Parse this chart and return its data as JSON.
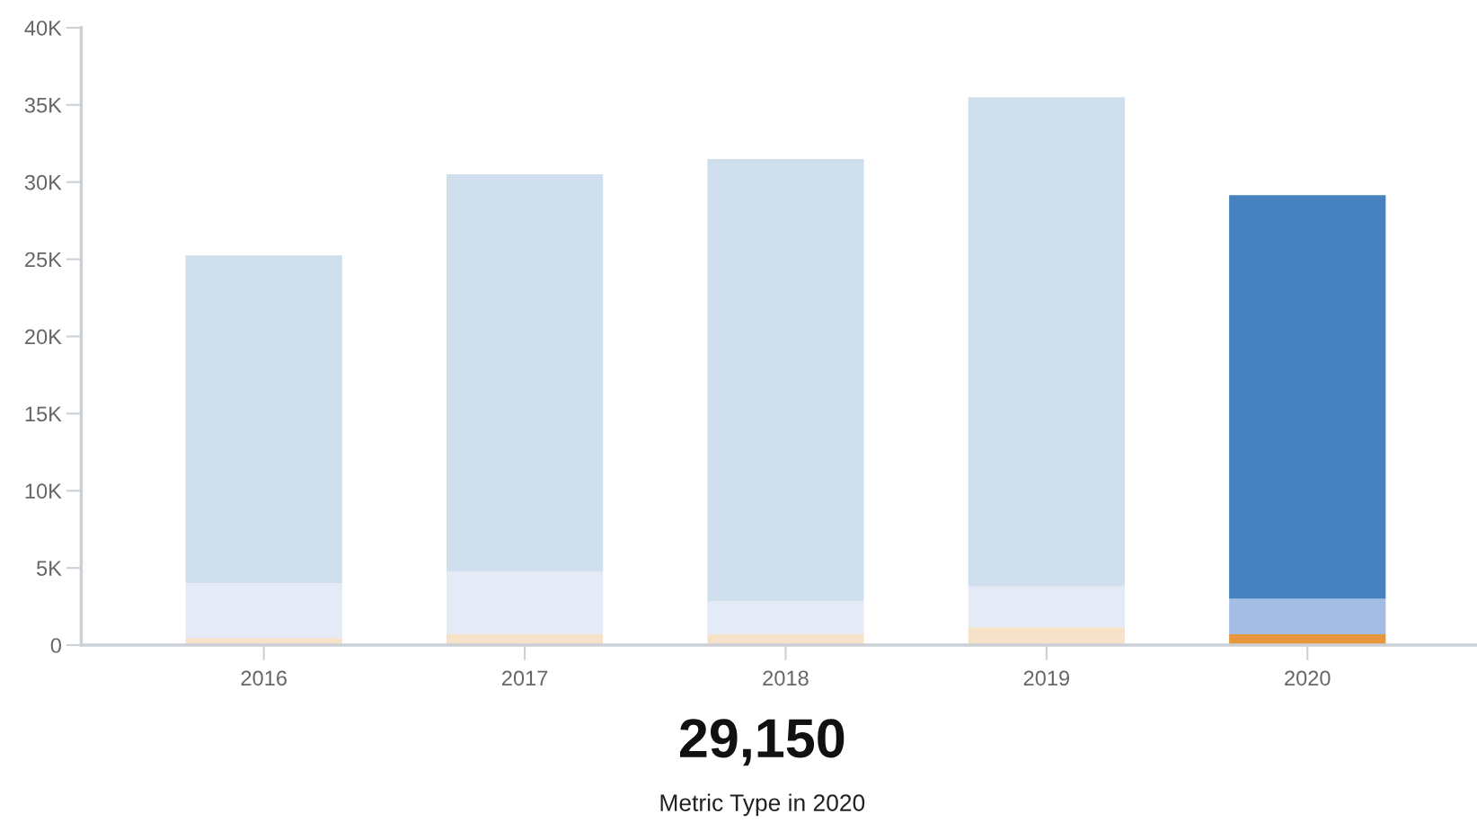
{
  "chart_data": {
    "type": "bar",
    "stacked": true,
    "title": "29,150",
    "subtitle": "Metric Type in 2020",
    "categories": [
      "2016",
      "2017",
      "2018",
      "2019",
      "2020"
    ],
    "series": [
      {
        "colors": [
          "#f6e2c8",
          "#f6e2c8",
          "#f6e2c8",
          "#f6e2c8",
          "#e6963c"
        ],
        "values": [
          450,
          700,
          700,
          1150,
          700
        ]
      },
      {
        "colors": [
          "#e4ebf6",
          "#e4ebf6",
          "#e4ebf6",
          "#e4ebf6",
          "#a3bde4"
        ],
        "values": [
          3550,
          4050,
          2150,
          2650,
          2300
        ]
      },
      {
        "colors": [
          "#cfdfee",
          "#cfdfee",
          "#cfdfee",
          "#cfdfee",
          "#4682bf"
        ],
        "values": [
          21250,
          25750,
          28650,
          31700,
          26150
        ]
      }
    ],
    "ylim": [
      0,
      40000
    ],
    "yticks": [
      {
        "value": 0,
        "label": "0"
      },
      {
        "value": 5000,
        "label": "5K"
      },
      {
        "value": 10000,
        "label": "10K"
      },
      {
        "value": 15000,
        "label": "15K"
      },
      {
        "value": 20000,
        "label": "20K"
      },
      {
        "value": 25000,
        "label": "25K"
      },
      {
        "value": 30000,
        "label": "30K"
      },
      {
        "value": 35000,
        "label": "35K"
      },
      {
        "value": 40000,
        "label": "40K"
      }
    ],
    "grid": false,
    "legend": false
  }
}
